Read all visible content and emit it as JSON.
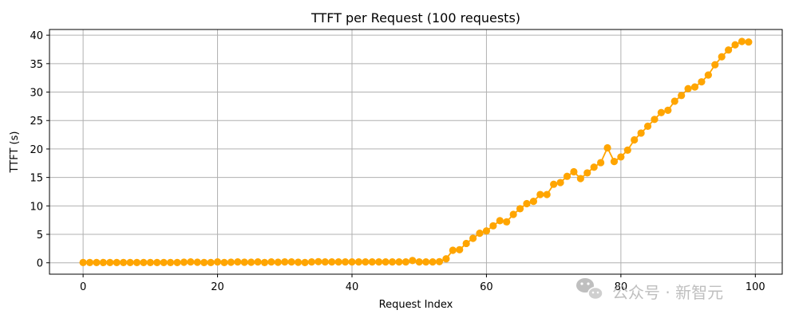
{
  "colors": {
    "series": "#FFA500",
    "grid": "#b0b0b0",
    "axis": "#000000",
    "watermark": "#bfbfbf"
  },
  "watermark": {
    "icon": "wechat-icon",
    "text": "公众号 · 新智元"
  },
  "chart_data": {
    "type": "line",
    "title": "TTFT per Request (100 requests)",
    "xlabel": "Request Index",
    "ylabel": "TTFT (s)",
    "xlim": [
      -5,
      104
    ],
    "ylim": [
      -2,
      41
    ],
    "xticks": [
      0,
      20,
      40,
      60,
      80,
      100
    ],
    "yticks": [
      0,
      5,
      10,
      15,
      20,
      25,
      30,
      35,
      40
    ],
    "grid": true,
    "marker": "circle",
    "series": [
      {
        "x": [
          0,
          1,
          2,
          3,
          4,
          5,
          6,
          7,
          8,
          9,
          10,
          11,
          12,
          13,
          14,
          15,
          16,
          17,
          18,
          19,
          20,
          21,
          22,
          23,
          24,
          25,
          26,
          27,
          28,
          29,
          30,
          31,
          32,
          33,
          34,
          35,
          36,
          37,
          38,
          39,
          40,
          41,
          42,
          43,
          44,
          45,
          46,
          47,
          48,
          49,
          50,
          51,
          52,
          53,
          54,
          55,
          56,
          57,
          58,
          59,
          60,
          61,
          62,
          63,
          64,
          65,
          66,
          67,
          68,
          69,
          70,
          71,
          72,
          73,
          74,
          75,
          76,
          77,
          78,
          79,
          80,
          81,
          82,
          83,
          84,
          85,
          86,
          87,
          88,
          89,
          90,
          91,
          92,
          93,
          94,
          95,
          96,
          97,
          98,
          99
        ],
        "y": [
          0.05,
          0.05,
          0.05,
          0.05,
          0.05,
          0.05,
          0.05,
          0.05,
          0.05,
          0.05,
          0.05,
          0.05,
          0.05,
          0.05,
          0.05,
          0.1,
          0.15,
          0.1,
          0.05,
          0.05,
          0.15,
          0.05,
          0.1,
          0.15,
          0.1,
          0.1,
          0.15,
          0.05,
          0.15,
          0.1,
          0.15,
          0.15,
          0.1,
          0.05,
          0.15,
          0.2,
          0.15,
          0.15,
          0.15,
          0.15,
          0.15,
          0.15,
          0.15,
          0.15,
          0.15,
          0.15,
          0.15,
          0.15,
          0.15,
          0.4,
          0.15,
          0.15,
          0.15,
          0.2,
          0.7,
          2.2,
          2.3,
          3.4,
          4.3,
          5.2,
          5.6,
          6.5,
          7.4,
          7.2,
          8.5,
          9.5,
          10.4,
          10.8,
          12.0,
          12.0,
          13.8,
          14.1,
          15.2,
          16.0,
          14.8,
          15.8,
          16.8,
          17.6,
          20.2,
          17.8,
          18.6,
          19.8,
          21.6,
          22.8,
          24.0,
          25.2,
          26.4,
          26.8,
          28.4,
          29.4,
          30.6,
          30.9,
          31.8,
          33.0,
          34.8,
          36.2,
          37.4,
          38.3,
          38.9,
          38.8
        ]
      }
    ]
  }
}
